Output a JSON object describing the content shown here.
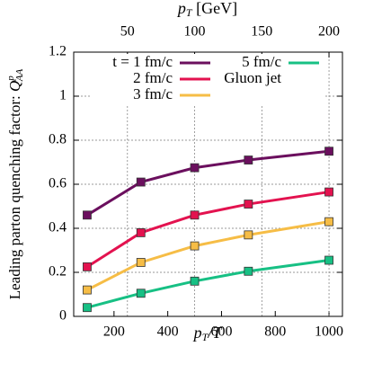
{
  "chart_data": {
    "type": "line",
    "xlabel": {
      "symbol": "p",
      "subscript": "T",
      "rest": "/T"
    },
    "x2label": {
      "symbol": "p",
      "subscript": "T",
      "rest": " [GeV]"
    },
    "ylabel": {
      "text": "Leading parton quenching factor: ",
      "symbol": "Q",
      "superscript": "p",
      "subscript": "AA"
    },
    "x": [
      100,
      300,
      500,
      700,
      1000
    ],
    "series": [
      {
        "name": "t = 1 fm/c",
        "color": "#6b0f5e",
        "values": [
          0.46,
          0.61,
          0.675,
          0.71,
          0.75
        ]
      },
      {
        "name": "2 fm/c",
        "color": "#e3124f",
        "values": [
          0.225,
          0.38,
          0.46,
          0.51,
          0.565
        ]
      },
      {
        "name": "3 fm/c",
        "color": "#f6bd46",
        "values": [
          0.12,
          0.245,
          0.32,
          0.37,
          0.43
        ]
      },
      {
        "name": "5 fm/c",
        "color": "#17c084",
        "values": [
          0.04,
          0.105,
          0.16,
          0.205,
          0.255
        ]
      }
    ],
    "legend_label": "Gluon jet",
    "xlim": [
      50,
      1050
    ],
    "xticks": [
      200,
      400,
      600,
      800,
      1000
    ],
    "x2lim": [
      10,
      210
    ],
    "x2ticks": [
      50,
      100,
      150,
      200
    ],
    "ylim": [
      0,
      1.2
    ],
    "yticks": [
      0,
      0.2,
      0.4,
      0.6,
      0.8,
      1,
      1.2
    ],
    "grid": true
  }
}
